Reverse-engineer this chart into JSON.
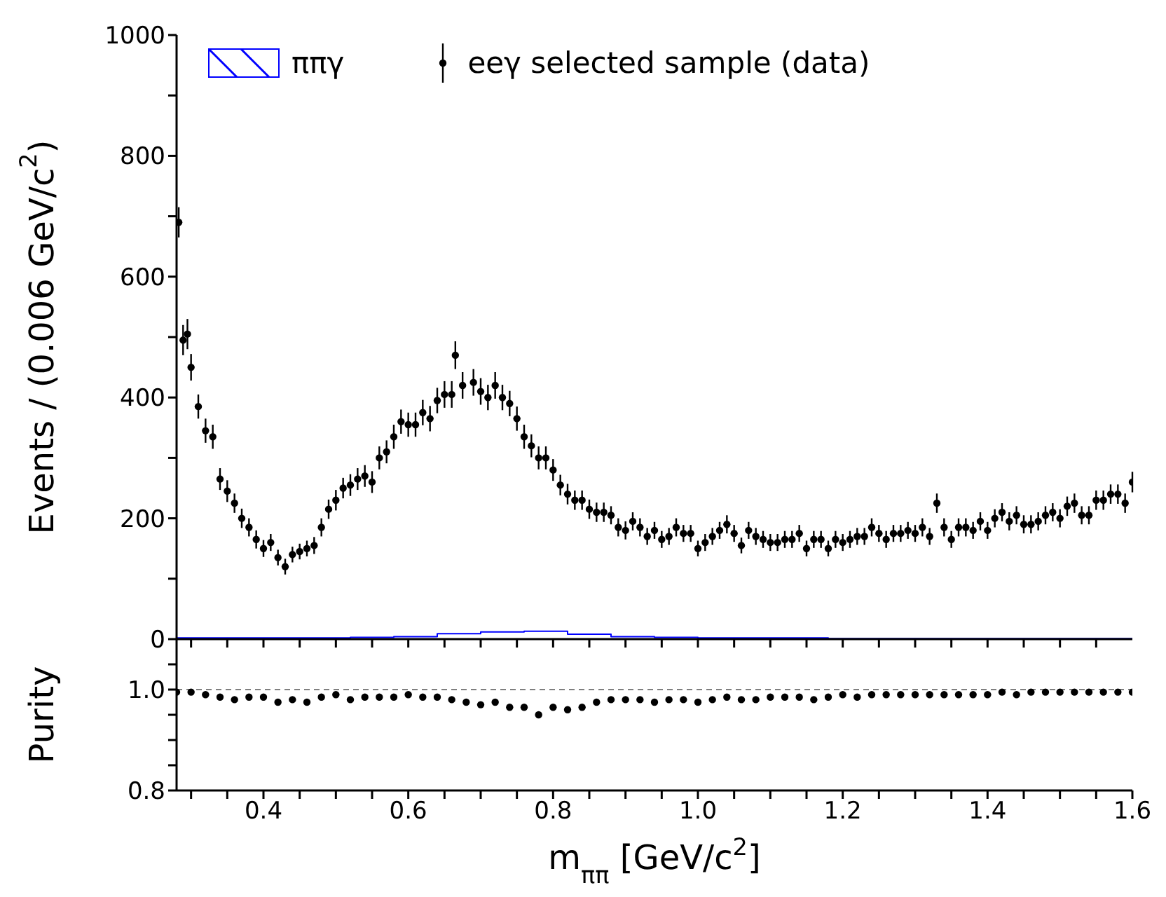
{
  "chart_data": [
    {
      "type": "scatter",
      "ylabel": "Events / (0.006 GeV/c$^{2}$)",
      "xlim": [
        0.28,
        1.6
      ],
      "ylim": [
        0,
        1000
      ],
      "tick_labels": "y",
      "legend": "top",
      "marker": "circle",
      "grid": false,
      "xticks": [
        {
          "value": 0.3,
          "label": null
        },
        {
          "value": 0.35,
          "label": null
        },
        {
          "value": 0.4,
          "label": null
        },
        {
          "value": 0.45,
          "label": null
        },
        {
          "value": 0.5,
          "label": null
        },
        {
          "value": 0.55,
          "label": null
        },
        {
          "value": 0.6,
          "label": null
        },
        {
          "value": 0.65,
          "label": null
        },
        {
          "value": 0.7,
          "label": null
        },
        {
          "value": 0.75,
          "label": null
        },
        {
          "value": 0.8,
          "label": null
        },
        {
          "value": 0.85,
          "label": null
        },
        {
          "value": 0.9,
          "label": null
        },
        {
          "value": 0.95,
          "label": null
        },
        {
          "value": 1.0,
          "label": null
        },
        {
          "value": 1.05,
          "label": null
        },
        {
          "value": 1.1,
          "label": null
        },
        {
          "value": 1.15,
          "label": null
        },
        {
          "value": 1.2,
          "label": null
        },
        {
          "value": 1.25,
          "label": null
        },
        {
          "value": 1.3,
          "label": null
        },
        {
          "value": 1.35,
          "label": null
        },
        {
          "value": 1.4,
          "label": null
        },
        {
          "value": 1.45,
          "label": null
        },
        {
          "value": 1.5,
          "label": null
        },
        {
          "value": 1.55,
          "label": null
        }
      ],
      "yticks": [
        0,
        {
          "value": 100,
          "label": null
        },
        200,
        {
          "value": 300,
          "label": null
        },
        400,
        {
          "value": 500,
          "label": null
        },
        600,
        {
          "value": 700,
          "label": null
        },
        800,
        {
          "value": 900,
          "label": null
        },
        1000
      ],
      "series": [
        {
          "name": "ππγ",
          "type": "histogram",
          "color": "#0000ff",
          "bins": [
            0.28,
            0.34,
            0.4,
            0.46,
            0.52,
            0.58,
            0.64,
            0.7,
            0.76,
            0.82,
            0.88,
            0.94,
            1.0,
            1.06,
            1.12,
            1.18,
            1.24,
            1.3,
            1.36,
            1.42,
            1.48,
            1.54,
            1.6
          ],
          "values": [
            2,
            2,
            2,
            2,
            3,
            4,
            9,
            12,
            13,
            8,
            4,
            3,
            2,
            2,
            2,
            1,
            1,
            1,
            1,
            1,
            1,
            1
          ]
        },
        {
          "name": "eeγ selected sample (data)",
          "type": "scatter",
          "color": "#000000",
          "x": [
            0.283,
            0.289,
            0.295,
            0.3,
            0.31,
            0.32,
            0.33,
            0.34,
            0.35,
            0.36,
            0.37,
            0.38,
            0.39,
            0.4,
            0.41,
            0.42,
            0.43,
            0.44,
            0.45,
            0.46,
            0.47,
            0.48,
            0.49,
            0.5,
            0.51,
            0.52,
            0.53,
            0.54,
            0.55,
            0.56,
            0.57,
            0.58,
            0.59,
            0.6,
            0.61,
            0.62,
            0.63,
            0.64,
            0.65,
            0.66,
            0.665,
            0.675,
            0.69,
            0.7,
            0.71,
            0.72,
            0.73,
            0.74,
            0.75,
            0.76,
            0.77,
            0.78,
            0.79,
            0.8,
            0.81,
            0.82,
            0.83,
            0.84,
            0.85,
            0.86,
            0.87,
            0.88,
            0.89,
            0.9,
            0.91,
            0.92,
            0.93,
            0.94,
            0.95,
            0.96,
            0.97,
            0.98,
            0.99,
            1.0,
            1.01,
            1.02,
            1.03,
            1.04,
            1.05,
            1.06,
            1.07,
            1.08,
            1.09,
            1.1,
            1.11,
            1.12,
            1.13,
            1.14,
            1.15,
            1.16,
            1.17,
            1.18,
            1.19,
            1.2,
            1.21,
            1.22,
            1.23,
            1.24,
            1.25,
            1.26,
            1.27,
            1.28,
            1.29,
            1.3,
            1.31,
            1.32,
            1.33,
            1.34,
            1.35,
            1.36,
            1.37,
            1.38,
            1.39,
            1.4,
            1.41,
            1.42,
            1.43,
            1.44,
            1.45,
            1.46,
            1.47,
            1.48,
            1.49,
            1.5,
            1.51,
            1.52,
            1.53,
            1.54,
            1.55,
            1.56,
            1.57,
            1.58,
            1.59,
            1.6
          ],
          "values": [
            690,
            495,
            505,
            450,
            385,
            345,
            335,
            265,
            245,
            225,
            200,
            185,
            165,
            150,
            160,
            135,
            120,
            140,
            145,
            150,
            155,
            185,
            215,
            230,
            250,
            255,
            265,
            270,
            260,
            300,
            310,
            335,
            360,
            355,
            355,
            375,
            365,
            395,
            405,
            405,
            470,
            420,
            425,
            410,
            400,
            420,
            400,
            390,
            365,
            335,
            320,
            300,
            300,
            280,
            255,
            240,
            230,
            230,
            215,
            210,
            210,
            205,
            185,
            180,
            195,
            185,
            170,
            180,
            165,
            170,
            185,
            175,
            175,
            150,
            160,
            170,
            180,
            190,
            175,
            155,
            180,
            170,
            165,
            160,
            160,
            165,
            165,
            175,
            150,
            165,
            165,
            150,
            165,
            160,
            165,
            170,
            170,
            185,
            175,
            165,
            175,
            175,
            180,
            175,
            185,
            170,
            225,
            185,
            165,
            185,
            185,
            180,
            195,
            180,
            200,
            210,
            195,
            205,
            190,
            190,
            195,
            205,
            210,
            200,
            220,
            225,
            205,
            205,
            230,
            230,
            240,
            240,
            225,
            260
          ],
          "errors": [
            25,
            25,
            25,
            22,
            20,
            20,
            20,
            18,
            18,
            16,
            16,
            15,
            15,
            14,
            14,
            13,
            13,
            13,
            13,
            13,
            14,
            15,
            16,
            17,
            17,
            18,
            18,
            18,
            18,
            19,
            19,
            20,
            20,
            20,
            20,
            21,
            21,
            21,
            22,
            22,
            23,
            22,
            22,
            22,
            21,
            22,
            21,
            21,
            20,
            20,
            19,
            19,
            19,
            18,
            17,
            17,
            16,
            16,
            16,
            16,
            16,
            15,
            15,
            15,
            15,
            15,
            14,
            14,
            14,
            14,
            15,
            14,
            14,
            13,
            14,
            14,
            14,
            15,
            14,
            13,
            14,
            14,
            14,
            14,
            14,
            14,
            14,
            14,
            13,
            14,
            14,
            13,
            14,
            14,
            14,
            14,
            14,
            15,
            14,
            14,
            14,
            14,
            14,
            14,
            15,
            14,
            16,
            15,
            14,
            15,
            15,
            14,
            15,
            14,
            15,
            15,
            15,
            15,
            15,
            15,
            15,
            15,
            15,
            15,
            16,
            16,
            15,
            15,
            16,
            16,
            16,
            16,
            16,
            17
          ]
        }
      ]
    },
    {
      "type": "scatter",
      "ylabel": "Purity",
      "xlabel": "m$_{ππ}$ [GeV/c$^{2}$]",
      "xlim": [
        0.28,
        1.6
      ],
      "ylim": [
        0.8,
        1.1
      ],
      "marker": "circle",
      "grid": false,
      "xticks": [
        {
          "value": 0.3,
          "label": null
        },
        {
          "value": 0.35,
          "label": null
        },
        0.4,
        {
          "value": 0.45,
          "label": null
        },
        {
          "value": 0.5,
          "label": null
        },
        {
          "value": 0.55,
          "label": null
        },
        0.6,
        {
          "value": 0.65,
          "label": null
        },
        {
          "value": 0.7,
          "label": null
        },
        {
          "value": 0.75,
          "label": null
        },
        0.8,
        {
          "value": 0.85,
          "label": null
        },
        {
          "value": 0.9,
          "label": null
        },
        {
          "value": 0.95,
          "label": null
        },
        {
          "value": 1.0,
          "label": "1.0"
        },
        {
          "value": 1.05,
          "label": null
        },
        {
          "value": 1.1,
          "label": null
        },
        {
          "value": 1.15,
          "label": null
        },
        1.2,
        {
          "value": 1.25,
          "label": null
        },
        {
          "value": 1.3,
          "label": null
        },
        {
          "value": 1.35,
          "label": null
        },
        1.4,
        {
          "value": 1.45,
          "label": null
        },
        {
          "value": 1.5,
          "label": null
        },
        {
          "value": 1.55,
          "label": null
        },
        1.6
      ],
      "yticks": [
        0.8,
        {
          "value": 0.85,
          "label": null
        },
        {
          "value": 0.9,
          "label": null
        },
        {
          "value": 0.95,
          "label": null
        },
        {
          "value": 1.0,
          "label": "1.0"
        },
        {
          "value": 1.05,
          "label": null
        }
      ],
      "ref_lines": [
        {
          "axis": "y",
          "value": 1.0,
          "color": "#555555",
          "line_style": "dashed"
        }
      ],
      "series": [
        {
          "type": "scatter",
          "color": "#000000",
          "x": [
            0.28,
            0.3,
            0.32,
            0.34,
            0.36,
            0.38,
            0.4,
            0.42,
            0.44,
            0.46,
            0.48,
            0.5,
            0.52,
            0.54,
            0.56,
            0.58,
            0.6,
            0.62,
            0.64,
            0.66,
            0.68,
            0.7,
            0.72,
            0.74,
            0.76,
            0.78,
            0.8,
            0.82,
            0.84,
            0.86,
            0.88,
            0.9,
            0.92,
            0.94,
            0.96,
            0.98,
            1.0,
            1.02,
            1.04,
            1.06,
            1.08,
            1.1,
            1.12,
            1.14,
            1.16,
            1.18,
            1.2,
            1.22,
            1.24,
            1.26,
            1.28,
            1.3,
            1.32,
            1.34,
            1.36,
            1.38,
            1.4,
            1.42,
            1.44,
            1.46,
            1.48,
            1.5,
            1.52,
            1.54,
            1.56,
            1.58,
            1.6
          ],
          "values": [
            0.995,
            0.995,
            0.99,
            0.985,
            0.98,
            0.985,
            0.985,
            0.975,
            0.98,
            0.975,
            0.985,
            0.99,
            0.98,
            0.985,
            0.985,
            0.985,
            0.99,
            0.985,
            0.985,
            0.98,
            0.975,
            0.97,
            0.975,
            0.965,
            0.965,
            0.95,
            0.965,
            0.96,
            0.965,
            0.975,
            0.98,
            0.98,
            0.98,
            0.975,
            0.98,
            0.98,
            0.975,
            0.98,
            0.985,
            0.98,
            0.98,
            0.985,
            0.985,
            0.985,
            0.98,
            0.985,
            0.99,
            0.985,
            0.99,
            0.99,
            0.99,
            0.99,
            0.99,
            0.99,
            0.99,
            0.99,
            0.99,
            0.995,
            0.99,
            0.995,
            0.995,
            0.995,
            0.995,
            0.995,
            0.995,
            0.995,
            0.995
          ]
        }
      ]
    }
  ]
}
